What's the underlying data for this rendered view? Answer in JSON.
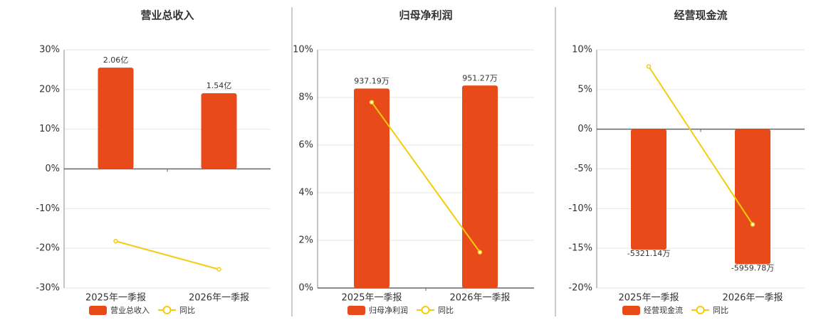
{
  "chart_data": [
    {
      "type": "combo",
      "title": "营业总收入",
      "categories": [
        "2025年一季报",
        "2026年一季报"
      ],
      "series": [
        {
          "name": "营业总收入",
          "color": "#e84a19",
          "kind": "bar",
          "values": [
            2.06,
            1.54
          ],
          "value_labels": [
            "2.06亿",
            "1.54亿"
          ]
        },
        {
          "name": "同比",
          "color": "#f5cc0c",
          "kind": "line",
          "values": [
            -18.2,
            -25.3
          ]
        }
      ],
      "ylim": [
        -30,
        30
      ],
      "yticks": [
        {
          "value": -30,
          "label": "-30%"
        },
        {
          "value": -20,
          "label": "-20%"
        },
        {
          "value": -10,
          "label": "-10%"
        },
        {
          "value": 0,
          "label": "0%"
        },
        {
          "value": 10,
          "label": "10%"
        },
        {
          "value": 20,
          "label": "20%"
        },
        {
          "value": 30,
          "label": "30%"
        }
      ],
      "grid": true
    },
    {
      "type": "combo",
      "title": "归母净利润",
      "categories": [
        "2025年一季报",
        "2026年一季报"
      ],
      "series": [
        {
          "name": "归母净利润",
          "color": "#e84a19",
          "kind": "bar",
          "values": [
            937.19,
            951.27
          ],
          "value_labels": [
            "937.19万",
            "951.27万"
          ]
        },
        {
          "name": "同比",
          "color": "#f5cc0c",
          "kind": "line",
          "values": [
            7.8,
            1.5
          ]
        }
      ],
      "ylim": [
        0,
        10
      ],
      "yticks": [
        {
          "value": 0,
          "label": "0%"
        },
        {
          "value": 2,
          "label": "2%"
        },
        {
          "value": 4,
          "label": "4%"
        },
        {
          "value": 6,
          "label": "6%"
        },
        {
          "value": 8,
          "label": "8%"
        },
        {
          "value": 10,
          "label": "10%"
        }
      ],
      "grid": true
    },
    {
      "type": "combo",
      "title": "经营现金流",
      "categories": [
        "2025年一季报",
        "2026年一季报"
      ],
      "series": [
        {
          "name": "经营现金流",
          "color": "#e84a19",
          "kind": "bar",
          "values": [
            -5321.14,
            -5959.78
          ],
          "value_labels": [
            "-5321.14万",
            "-5959.78万"
          ]
        },
        {
          "name": "同比",
          "color": "#f5cc0c",
          "kind": "line",
          "values": [
            7.9,
            -12.0
          ]
        }
      ],
      "ylim": [
        -20,
        10
      ],
      "yticks": [
        {
          "value": -20,
          "label": "-20%"
        },
        {
          "value": -15,
          "label": "-15%"
        },
        {
          "value": -10,
          "label": "-10%"
        },
        {
          "value": -5,
          "label": "-5%"
        },
        {
          "value": 0,
          "label": "0%"
        },
        {
          "value": 5,
          "label": "5%"
        },
        {
          "value": 10,
          "label": "10%"
        }
      ],
      "grid": true
    }
  ]
}
